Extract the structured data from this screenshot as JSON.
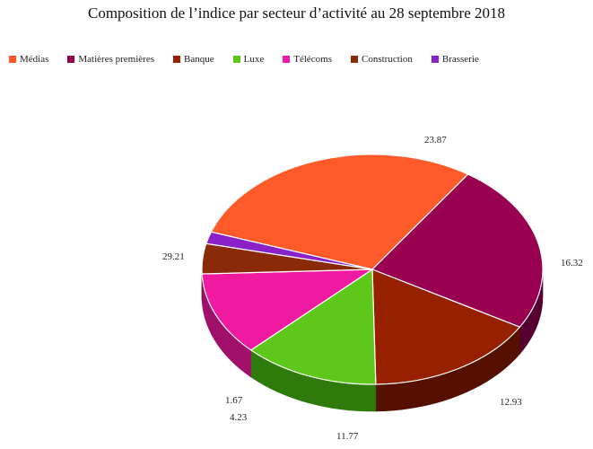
{
  "chart_data": {
    "type": "pie",
    "title": "Composition de l’indice par secteur d’activité au 28 septembre 2018",
    "legend_position": "top",
    "slices": [
      {
        "name": "Médias",
        "value": 29.21,
        "label": "29.21",
        "color": "#ff5a2a",
        "side": "#8a2e12"
      },
      {
        "name": "Matières premières",
        "value": 23.87,
        "label": "23.87",
        "color": "#9a0050",
        "side": "#550030"
      },
      {
        "name": "Banque",
        "value": 16.32,
        "label": "16.32",
        "color": "#962000",
        "side": "#551000"
      },
      {
        "name": "Luxe",
        "value": 12.93,
        "label": "12.93",
        "color": "#5ec81a",
        "side": "#2e7a0a"
      },
      {
        "name": "Télécoms",
        "value": 11.77,
        "label": "11.77",
        "color": "#f01aa0",
        "side": "#a0106a"
      },
      {
        "name": "Construction",
        "value": 4.23,
        "label": "4.23",
        "color": "#8a2a08",
        "side": "#4a1404"
      },
      {
        "name": "Brasserie",
        "value": 1.67,
        "label": "1.67",
        "color": "#8a20c8",
        "side": "#4e107a"
      }
    ]
  }
}
